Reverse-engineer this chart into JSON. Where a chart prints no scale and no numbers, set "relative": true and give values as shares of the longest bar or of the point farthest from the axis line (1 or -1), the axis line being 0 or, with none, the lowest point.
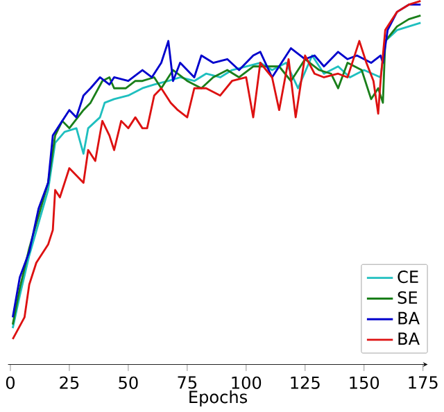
{
  "chart_data": {
    "type": "line",
    "xlabel": "Epochs",
    "relative": true,
    "xlim": [
      -1,
      177
    ],
    "xticks": [
      0,
      25,
      50,
      75,
      100,
      125,
      150,
      175
    ],
    "tick_labels": "x",
    "legend": "bottom right",
    "grid": false,
    "marker": "none",
    "line_style": "solid",
    "series": [
      {
        "name": "CE",
        "color": "#1fbfbf",
        "x": [
          1,
          4,
          8,
          12,
          16,
          19,
          23,
          28,
          31,
          33,
          38,
          40,
          44,
          50,
          56,
          61,
          67,
          72,
          78,
          83,
          89,
          94,
          100,
          106,
          111,
          117,
          122,
          128,
          133,
          139,
          144,
          150,
          157,
          159,
          164,
          169,
          174
        ],
        "values": [
          0.1,
          0.19,
          0.3,
          0.39,
          0.48,
          0.61,
          0.64,
          0.65,
          0.58,
          0.65,
          0.68,
          0.72,
          0.73,
          0.74,
          0.76,
          0.77,
          0.78,
          0.79,
          0.78,
          0.8,
          0.79,
          0.81,
          0.82,
          0.83,
          0.81,
          0.83,
          0.76,
          0.85,
          0.8,
          0.82,
          0.79,
          0.81,
          0.79,
          0.89,
          0.92,
          0.93,
          0.94
        ]
      },
      {
        "name": "SE",
        "color": "#1a7f1a",
        "x": [
          1,
          4,
          8,
          12,
          16,
          19,
          22,
          25,
          31,
          34,
          39,
          42,
          44,
          49,
          53,
          56,
          61,
          64,
          69,
          75,
          81,
          86,
          92,
          97,
          103,
          108,
          114,
          119,
          125,
          131,
          136,
          139,
          143,
          149,
          153,
          156,
          158,
          159,
          164,
          169,
          174
        ],
        "values": [
          0.11,
          0.21,
          0.32,
          0.41,
          0.5,
          0.63,
          0.67,
          0.65,
          0.7,
          0.72,
          0.78,
          0.79,
          0.76,
          0.76,
          0.78,
          0.78,
          0.79,
          0.76,
          0.81,
          0.78,
          0.76,
          0.79,
          0.81,
          0.79,
          0.82,
          0.82,
          0.82,
          0.78,
          0.84,
          0.81,
          0.8,
          0.76,
          0.83,
          0.81,
          0.73,
          0.76,
          0.72,
          0.89,
          0.93,
          0.95,
          0.96
        ]
      },
      {
        "name": "BA",
        "color": "#0000cc",
        "x": [
          1,
          4,
          8,
          12,
          16,
          18,
          21,
          25,
          28,
          31,
          34,
          38,
          42,
          44,
          50,
          56,
          60,
          64,
          67,
          69,
          72,
          78,
          81,
          86,
          92,
          97,
          103,
          106,
          111,
          117,
          119,
          125,
          129,
          133,
          139,
          143,
          147,
          153,
          157,
          158,
          160,
          164,
          169,
          174
        ],
        "values": [
          0.13,
          0.24,
          0.31,
          0.43,
          0.5,
          0.63,
          0.66,
          0.7,
          0.68,
          0.74,
          0.76,
          0.79,
          0.77,
          0.79,
          0.78,
          0.81,
          0.79,
          0.83,
          0.89,
          0.78,
          0.83,
          0.79,
          0.85,
          0.83,
          0.84,
          0.81,
          0.85,
          0.86,
          0.79,
          0.85,
          0.87,
          0.84,
          0.85,
          0.82,
          0.86,
          0.84,
          0.85,
          0.83,
          0.85,
          0.83,
          0.92,
          0.97,
          0.99,
          0.99
        ]
      },
      {
        "name": "BA",
        "color": "#dd1111",
        "x": [
          1,
          6,
          8,
          11,
          16,
          18,
          19,
          21,
          25,
          28,
          31,
          33,
          36,
          39,
          42,
          44,
          47,
          50,
          53,
          56,
          58,
          61,
          64,
          68,
          71,
          75,
          78,
          83,
          89,
          94,
          100,
          103,
          106,
          111,
          114,
          118,
          121,
          125,
          129,
          133,
          139,
          143,
          148,
          151,
          154,
          156,
          157,
          159,
          164,
          169,
          174
        ],
        "values": [
          0.07,
          0.13,
          0.22,
          0.28,
          0.33,
          0.37,
          0.48,
          0.46,
          0.54,
          0.52,
          0.5,
          0.59,
          0.56,
          0.67,
          0.63,
          0.59,
          0.67,
          0.65,
          0.68,
          0.65,
          0.65,
          0.74,
          0.76,
          0.72,
          0.7,
          0.68,
          0.76,
          0.76,
          0.74,
          0.78,
          0.79,
          0.68,
          0.83,
          0.79,
          0.7,
          0.84,
          0.68,
          0.85,
          0.8,
          0.79,
          0.8,
          0.79,
          0.89,
          0.83,
          0.78,
          0.69,
          0.78,
          0.92,
          0.97,
          0.99,
          1.0
        ]
      }
    ]
  }
}
